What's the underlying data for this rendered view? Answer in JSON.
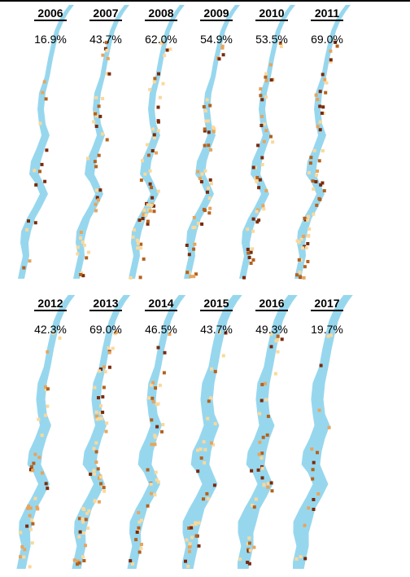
{
  "colors": {
    "river": "#97d7ee",
    "cell_low": "#fbd89a",
    "cell_mid": "#e8a45a",
    "cell_high": "#b5611c",
    "cell_max": "#7a2a0a"
  },
  "rows": [
    {
      "panels": [
        {
          "year": "2006",
          "percent": "16.9%"
        },
        {
          "year": "2007",
          "percent": "43.7%"
        },
        {
          "year": "2008",
          "percent": "62.0%"
        },
        {
          "year": "2009",
          "percent": "54.9%"
        },
        {
          "year": "2010",
          "percent": "53.5%"
        },
        {
          "year": "2011",
          "percent": "69.0%"
        }
      ]
    },
    {
      "panels": [
        {
          "year": "2012",
          "percent": "42.3%"
        },
        {
          "year": "2013",
          "percent": "69.0%"
        },
        {
          "year": "2014",
          "percent": "46.5%"
        },
        {
          "year": "2015",
          "percent": "43.7%"
        },
        {
          "year": "2016",
          "percent": "49.3%"
        },
        {
          "year": "2017",
          "percent": "19.7%"
        }
      ]
    }
  ]
}
